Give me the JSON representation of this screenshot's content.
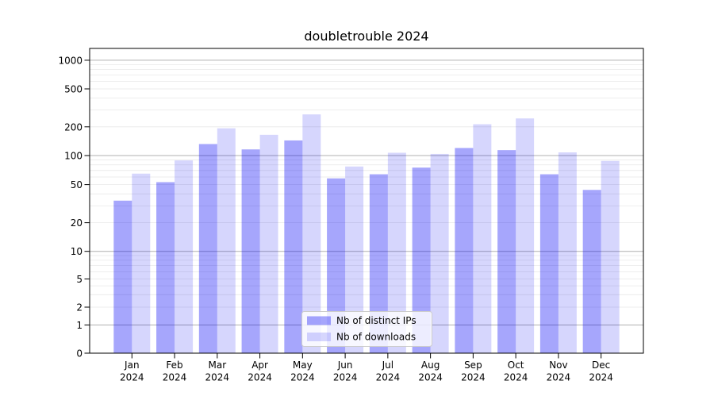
{
  "chart_data": {
    "type": "bar",
    "title": "doubletrouble 2024",
    "categories": [
      "Jan 2024",
      "Feb 2024",
      "Mar 2024",
      "Apr 2024",
      "May 2024",
      "Jun 2024",
      "Jul 2024",
      "Aug 2024",
      "Sep 2024",
      "Oct 2024",
      "Nov 2024",
      "Dec 2024"
    ],
    "series": [
      {
        "name": "Nb of distinct IPs",
        "color": "rgba(0,0,245,0.35)",
        "values": [
          34,
          53,
          132,
          116,
          144,
          58,
          64,
          75,
          120,
          114,
          64,
          44
        ]
      },
      {
        "name": "Nb of downloads",
        "color": "rgba(0,0,245,0.16)",
        "values": [
          65,
          89,
          193,
          165,
          270,
          77,
          107,
          104,
          213,
          245,
          108,
          88
        ]
      }
    ],
    "xlabel": "",
    "ylabel": "",
    "yscale": "symlog",
    "yticks": [
      0,
      1,
      2,
      5,
      10,
      20,
      50,
      100,
      200,
      500,
      1000
    ],
    "ylim": [
      0,
      1300
    ],
    "grid": true,
    "legend_position": "lower center",
    "colors": {
      "major_grid": "#b0b0b0",
      "minor_grid": "#e8e8e8",
      "axis": "#000000"
    }
  }
}
